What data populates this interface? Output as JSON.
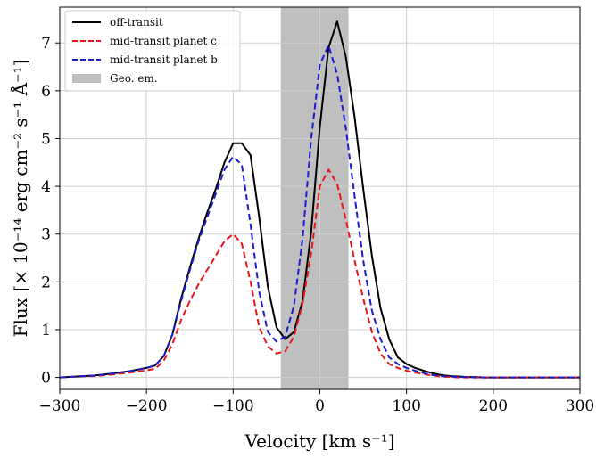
{
  "chart_data": {
    "type": "line",
    "title": "",
    "xlabel": "Velocity [km s⁻¹]",
    "ylabel": "Flux [× 10⁻¹⁴ erg cm⁻² s⁻¹ Å⁻¹]",
    "xlim": [
      -300,
      300
    ],
    "ylim": [
      -0.25,
      7.75
    ],
    "xticks": [
      -300,
      -200,
      -100,
      0,
      100,
      200,
      300
    ],
    "xtick_labels": [
      "−300",
      "−200",
      "−100",
      "0",
      "100",
      "200",
      "300"
    ],
    "yticks": [
      0,
      1,
      2,
      3,
      4,
      5,
      6,
      7
    ],
    "ytick_labels": [
      "0",
      "1",
      "2",
      "3",
      "4",
      "5",
      "6",
      "7"
    ],
    "grid": true,
    "legend_position": "top-left",
    "shaded_region": {
      "name": "Geo. em.",
      "x_range": [
        -45,
        33
      ],
      "color": "#bfbfbf"
    },
    "x": [
      -300,
      -280,
      -260,
      -240,
      -220,
      -200,
      -190,
      -180,
      -170,
      -160,
      -150,
      -140,
      -130,
      -120,
      -110,
      -100,
      -90,
      -80,
      -70,
      -60,
      -50,
      -40,
      -30,
      -20,
      -10,
      0,
      10,
      20,
      30,
      40,
      50,
      60,
      70,
      80,
      90,
      100,
      110,
      120,
      130,
      140,
      150,
      160,
      170,
      180,
      190,
      200,
      210,
      220,
      230,
      240,
      250,
      260,
      270,
      280,
      290,
      300
    ],
    "series": [
      {
        "name": "off-transit",
        "color": "#000000",
        "dash": "solid",
        "values": [
          0.0,
          0.02,
          0.04,
          0.08,
          0.13,
          0.2,
          0.25,
          0.45,
          0.9,
          1.65,
          2.3,
          2.9,
          3.45,
          3.95,
          4.5,
          4.9,
          4.9,
          4.65,
          3.35,
          1.9,
          1.05,
          0.8,
          0.95,
          1.6,
          3.05,
          5.25,
          6.9,
          7.45,
          6.7,
          5.45,
          3.95,
          2.55,
          1.45,
          0.8,
          0.42,
          0.28,
          0.2,
          0.14,
          0.09,
          0.05,
          0.03,
          0.02,
          0.01,
          0.01,
          0.0,
          0.0,
          0.0,
          0.0,
          0.0,
          0.0,
          0.0,
          0.0,
          0.0,
          0.0,
          0.0,
          0.0
        ]
      },
      {
        "name": "mid-transit planet c",
        "color": "#e8141b",
        "dash": "dashed",
        "values": [
          0.0,
          0.02,
          0.03,
          0.06,
          0.1,
          0.15,
          0.18,
          0.35,
          0.7,
          1.2,
          1.6,
          1.95,
          2.25,
          2.55,
          2.85,
          3.0,
          2.8,
          2.0,
          1.05,
          0.65,
          0.5,
          0.55,
          0.85,
          1.55,
          2.6,
          4.0,
          4.35,
          4.05,
          3.3,
          2.45,
          1.65,
          0.95,
          0.5,
          0.28,
          0.2,
          0.14,
          0.1,
          0.07,
          0.04,
          0.02,
          0.01,
          0.0,
          0.0,
          0.0,
          0.0,
          0.0,
          0.0,
          0.0,
          0.0,
          0.0,
          0.0,
          0.0,
          0.0,
          0.0,
          0.0,
          0.0
        ]
      },
      {
        "name": "mid-transit planet b",
        "color": "#1b1bd0",
        "dash": "dashed",
        "values": [
          0.0,
          0.02,
          0.04,
          0.08,
          0.13,
          0.2,
          0.25,
          0.45,
          0.9,
          1.6,
          2.25,
          2.85,
          3.35,
          3.85,
          4.35,
          4.62,
          4.45,
          3.2,
          1.8,
          0.95,
          0.75,
          0.85,
          1.5,
          2.9,
          5.0,
          6.55,
          6.95,
          6.35,
          5.2,
          3.8,
          2.45,
          1.4,
          0.8,
          0.42,
          0.28,
          0.2,
          0.14,
          0.09,
          0.05,
          0.03,
          0.02,
          0.01,
          0.01,
          0.0,
          0.0,
          0.0,
          0.0,
          0.0,
          0.0,
          0.0,
          0.0,
          0.0,
          0.0,
          0.0,
          0.0,
          0.0
        ]
      }
    ]
  }
}
